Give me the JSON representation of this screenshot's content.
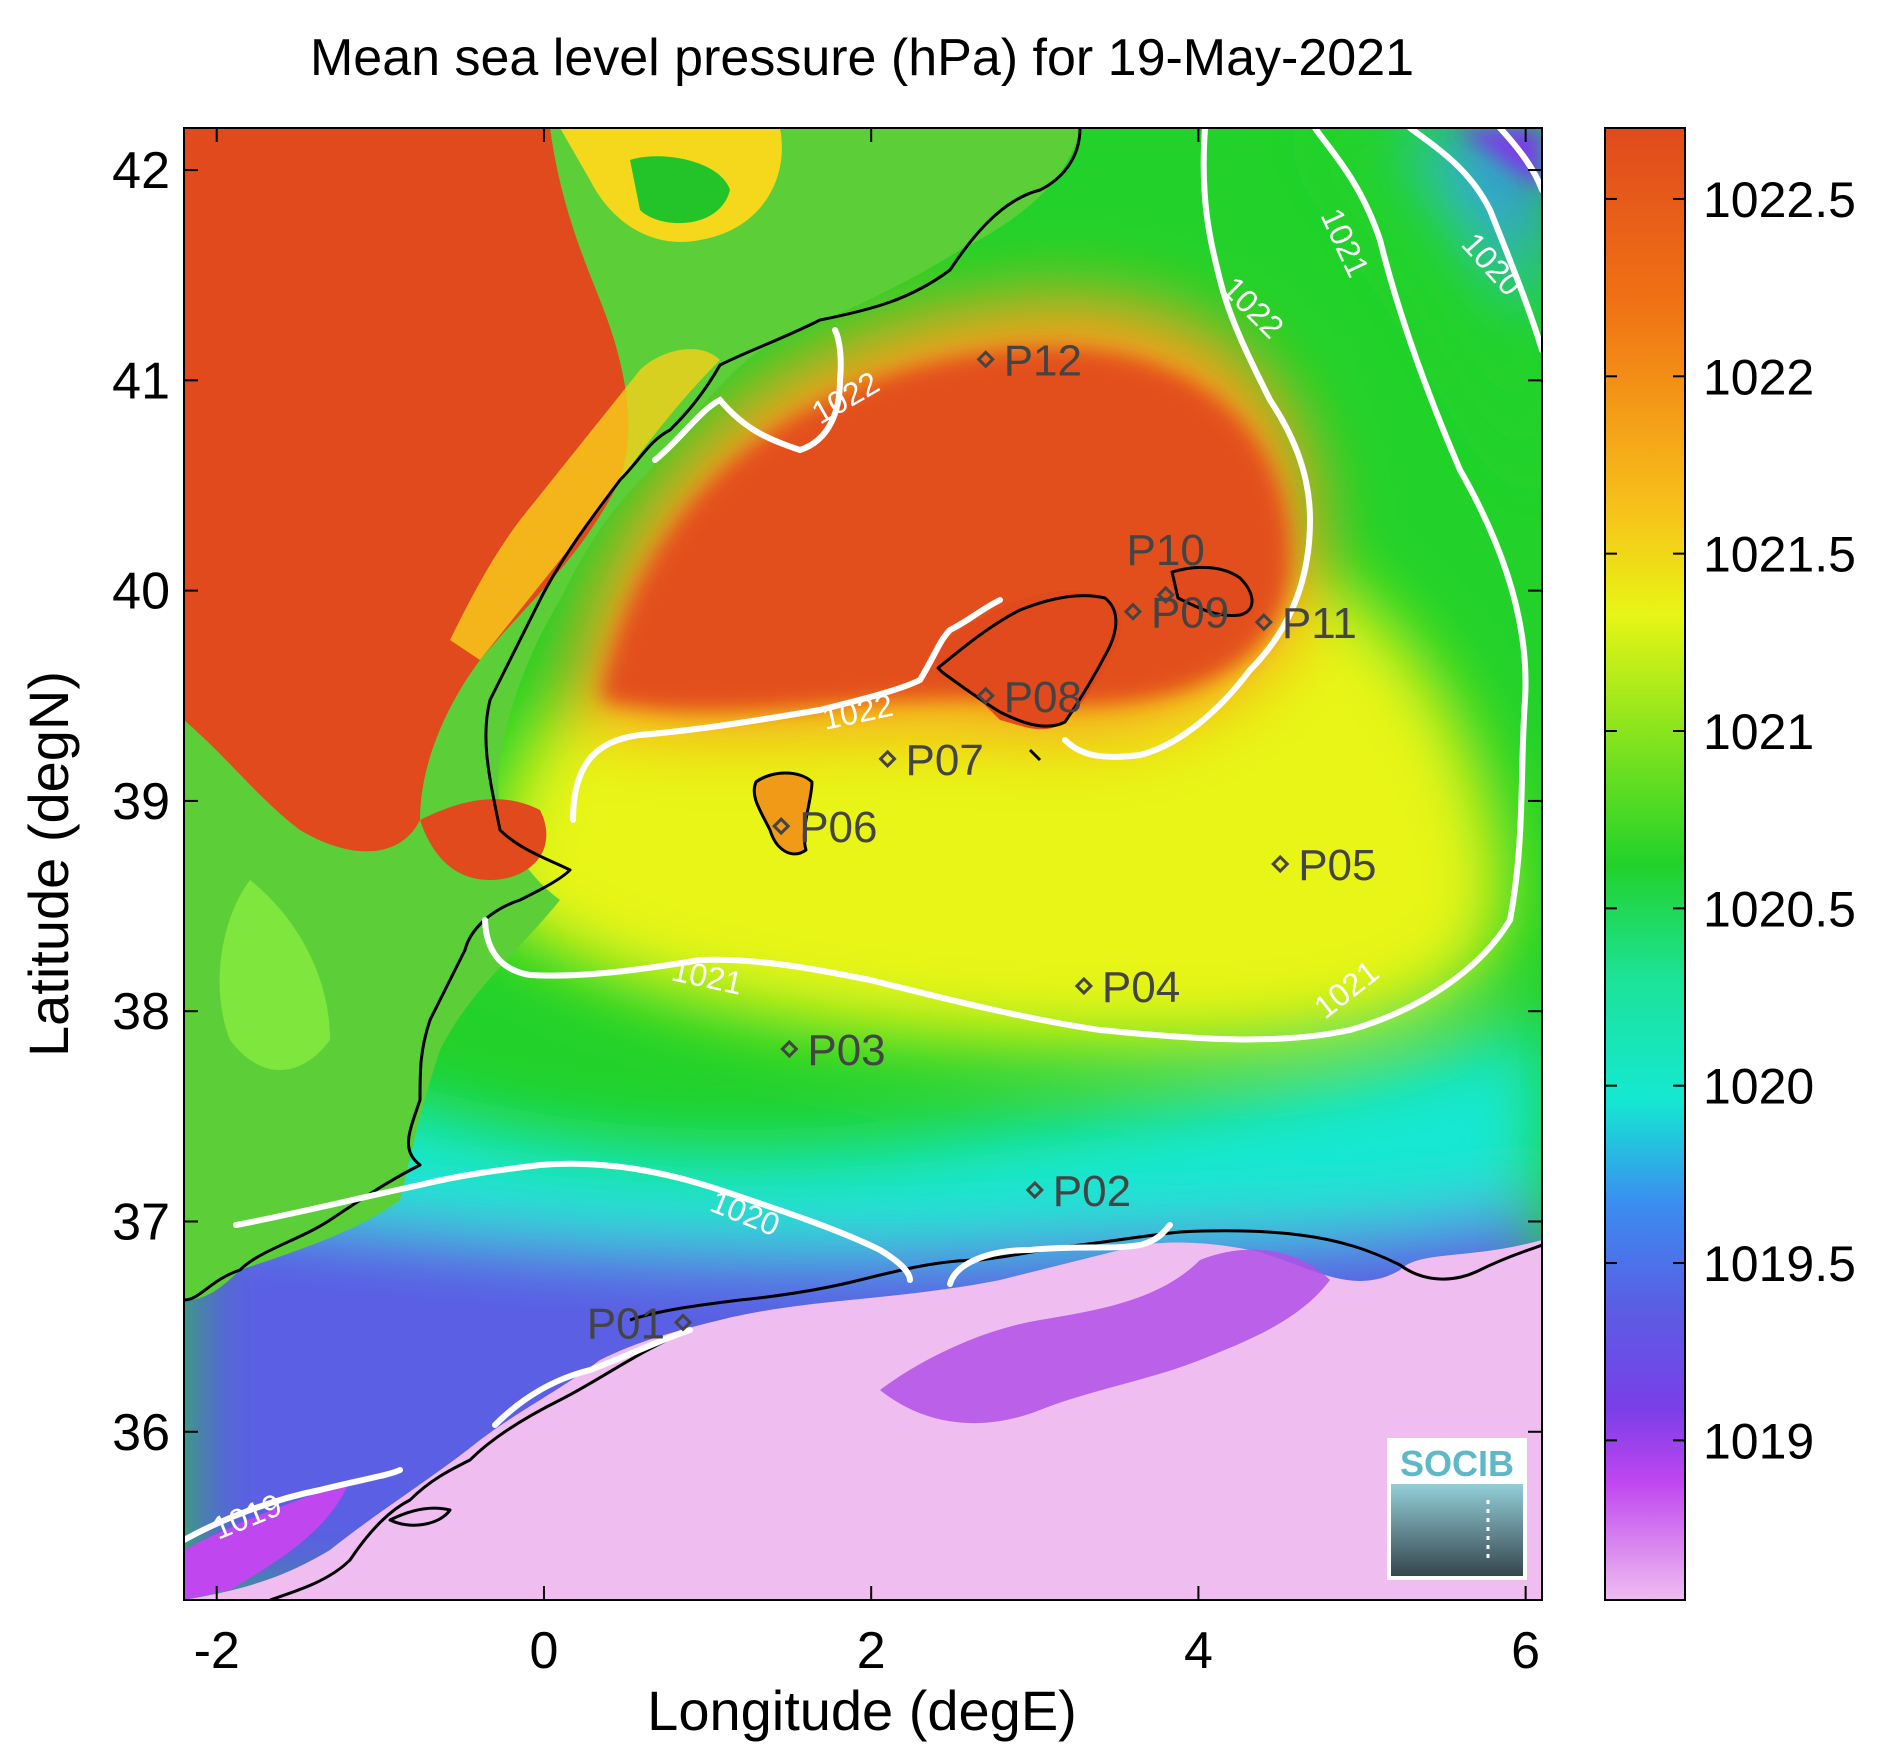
{
  "title": "Mean sea level pressure (hPa) for 19-May-2021",
  "xlabel": "Longitude (degE)",
  "ylabel": "Latitude (degN)",
  "x_ticks": [
    "-2",
    "0",
    "2",
    "4",
    "6"
  ],
  "y_ticks": [
    "36",
    "37",
    "38",
    "39",
    "40",
    "41",
    "42"
  ],
  "colorbar_ticks": [
    "1019",
    "1019.5",
    "1020",
    "1020.5",
    "1021",
    "1021.5",
    "1022",
    "1022.5"
  ],
  "logo_text": "SOCIB",
  "contour_labels": [
    "1022",
    "1022",
    "1022",
    "1021",
    "1021",
    "1021",
    "1020",
    "1020",
    "1019"
  ],
  "chart_data": {
    "type": "heatmap",
    "title": "Mean sea level pressure (hPa) for 19-May-2021",
    "xlabel": "Longitude (degE)",
    "ylabel": "Latitude (degN)",
    "xlim": [
      -2.2,
      6.1
    ],
    "ylim": [
      35.2,
      42.2
    ],
    "colorbar": {
      "min": 1018.55,
      "max": 1022.7,
      "ticks": [
        1019,
        1019.5,
        1020,
        1020.5,
        1021,
        1021.5,
        1022,
        1022.5
      ]
    },
    "contour_levels": [
      1019,
      1020,
      1021,
      1022
    ],
    "stations": [
      {
        "name": "P01",
        "lon": 0.85,
        "lat": 36.52
      },
      {
        "name": "P02",
        "lon": 3.0,
        "lat": 37.15
      },
      {
        "name": "P03",
        "lon": 1.5,
        "lat": 37.82
      },
      {
        "name": "P04",
        "lon": 3.3,
        "lat": 38.12
      },
      {
        "name": "P05",
        "lon": 4.5,
        "lat": 38.7
      },
      {
        "name": "P06",
        "lon": 1.45,
        "lat": 38.88
      },
      {
        "name": "P07",
        "lon": 2.1,
        "lat": 39.2
      },
      {
        "name": "P08",
        "lon": 2.7,
        "lat": 39.5
      },
      {
        "name": "P09",
        "lon": 3.6,
        "lat": 39.9
      },
      {
        "name": "P10",
        "lon": 3.8,
        "lat": 39.98
      },
      {
        "name": "P11",
        "lon": 4.4,
        "lat": 39.85
      },
      {
        "name": "P12",
        "lon": 2.7,
        "lat": 41.1
      }
    ],
    "colors": {
      "high": "#e04a1c",
      "mid_high": "#f7c21a",
      "mid": "#e8f515",
      "green": "#22d22a",
      "cyan": "#14e8d2",
      "blue": "#3a8ef0",
      "violet": "#7a3ee8",
      "low": "#efbdf0",
      "contour": "#ffffff",
      "coast": "#000000",
      "station": "#444444"
    }
  }
}
